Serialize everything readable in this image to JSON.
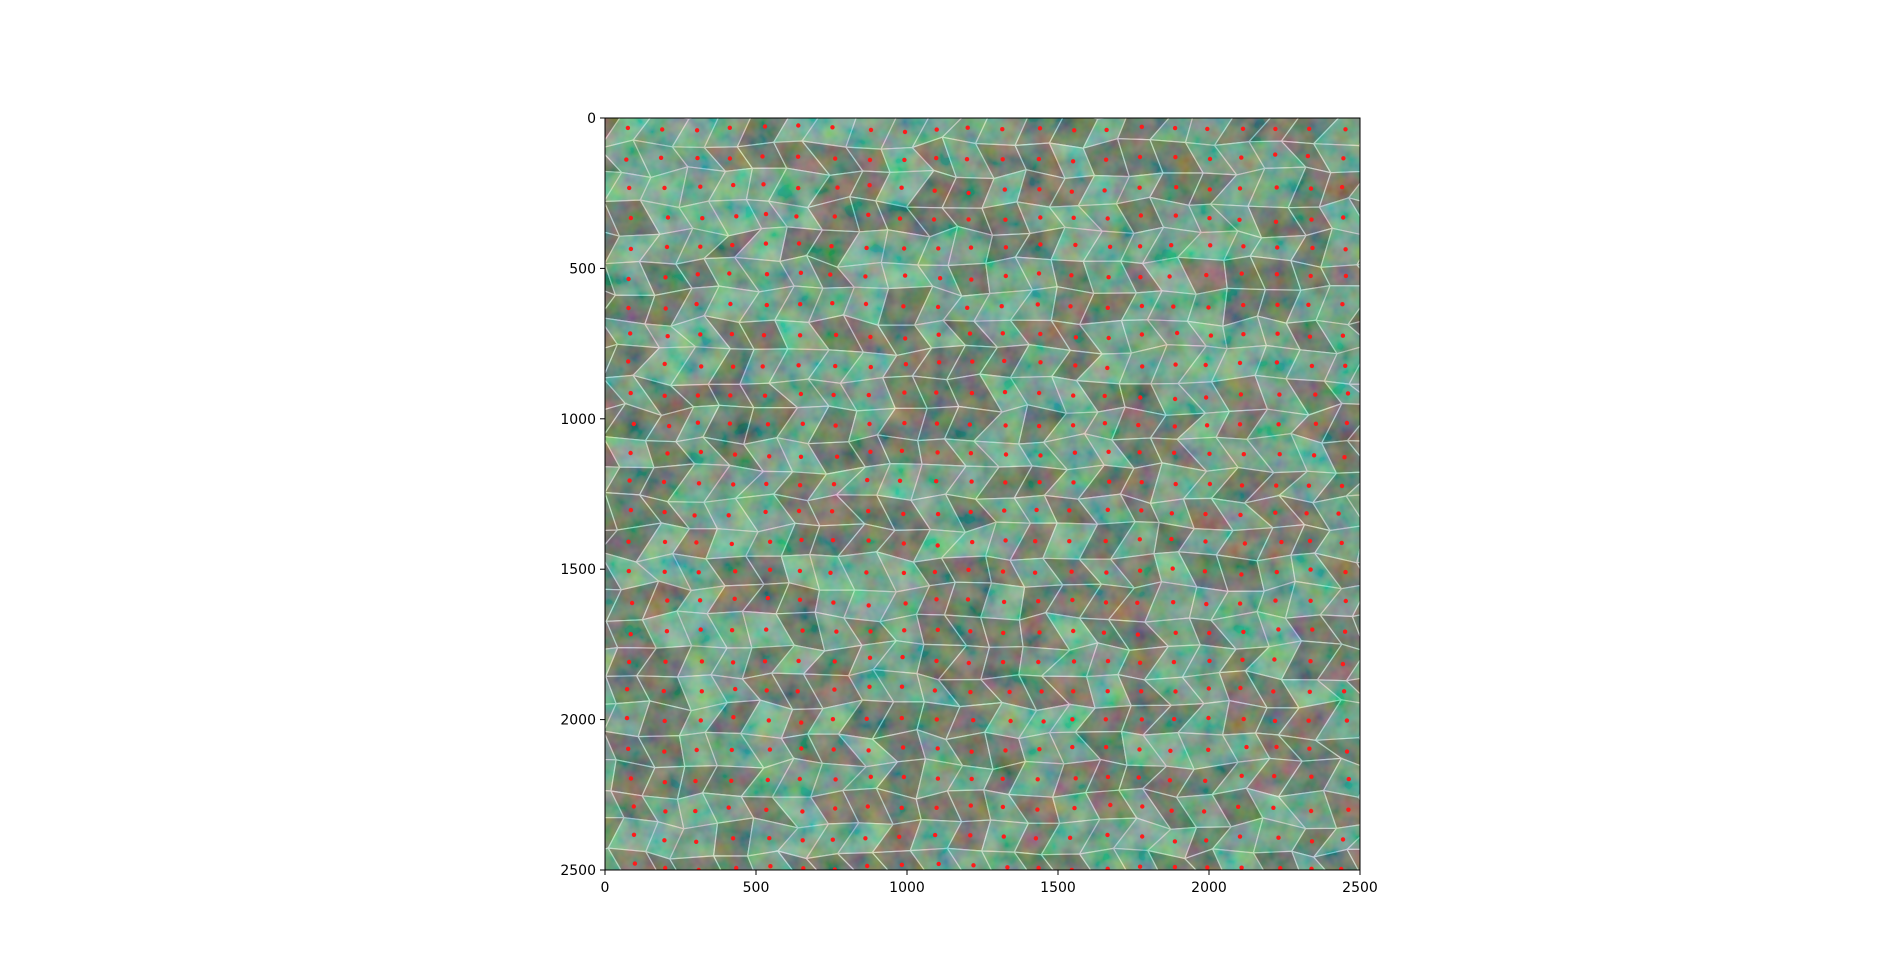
{
  "figure": {
    "title": "",
    "xlabel": "",
    "ylabel": ""
  },
  "image": {
    "description_colors": {
      "background_green": "#5f9e80",
      "light_green": "#74c29c",
      "dark_brown": "#4b3b33",
      "red_brown": "#7a3f38",
      "outline": "#ffffff",
      "marker": "#ff1a1a"
    },
    "extent": {
      "x": [
        0,
        2500
      ],
      "y": [
        0,
        2500
      ]
    },
    "y_axis_inverted": true
  },
  "axes": {
    "x_ticks": [
      "0",
      "500",
      "1000",
      "1500",
      "2000",
      "2500"
    ],
    "y_ticks": [
      "0",
      "500",
      "1000",
      "1500",
      "2000",
      "2500"
    ]
  },
  "overlay": {
    "segment_outline_color": "#ffffff",
    "centroid_marker_color": "#ff1a1a"
  }
}
